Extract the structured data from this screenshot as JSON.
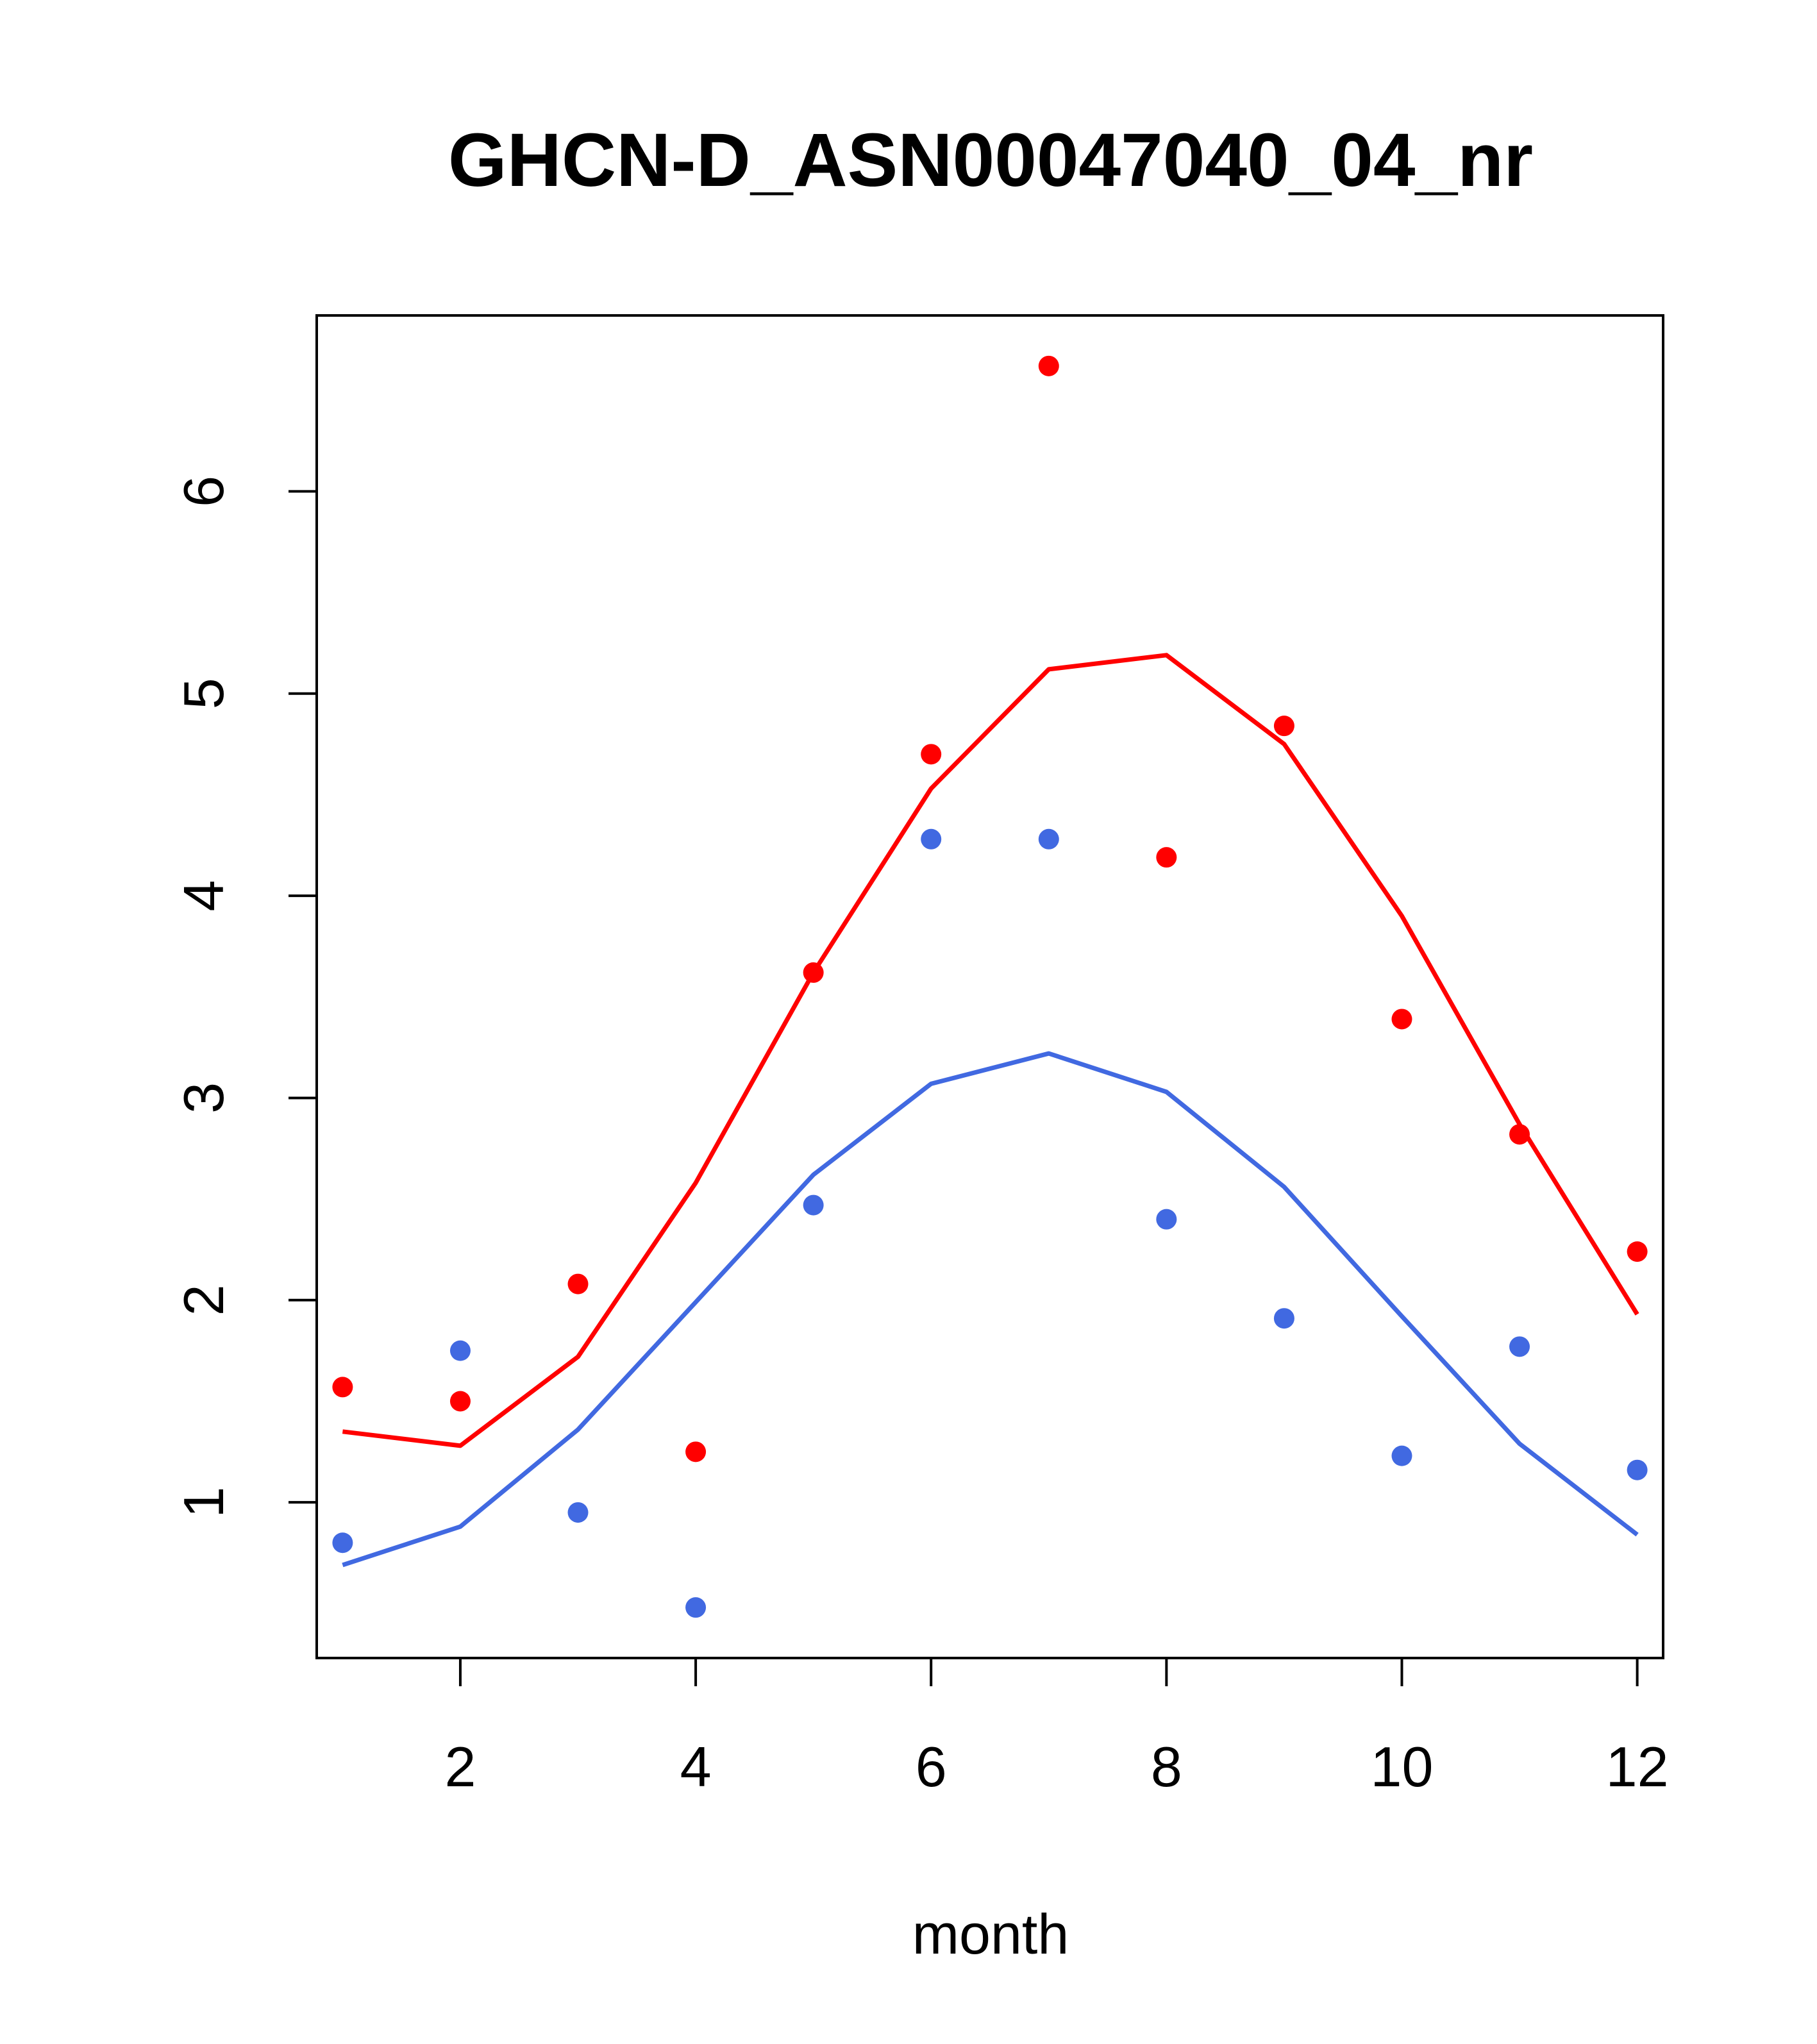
{
  "chart_data": {
    "type": "scatter",
    "title": "GHCN-D_ASN00047040_04_nr",
    "xlabel": "month",
    "ylabel": "",
    "xlim": [
      0.78,
      12.22
    ],
    "ylim": [
      0.23,
      6.87
    ],
    "x_ticks": [
      2,
      4,
      6,
      8,
      10,
      12
    ],
    "y_ticks": [
      1,
      2,
      3,
      4,
      5,
      6
    ],
    "grid": false,
    "legend": "none",
    "x": [
      1,
      2,
      3,
      4,
      5,
      6,
      7,
      8,
      9,
      10,
      11,
      12
    ],
    "series": [
      {
        "color": "#ff0000",
        "points": [
          1.57,
          1.5,
          2.08,
          1.25,
          3.62,
          4.7,
          6.62,
          4.19,
          4.84,
          3.39,
          2.82,
          2.24
        ],
        "line": [
          1.35,
          1.28,
          1.72,
          2.58,
          3.62,
          4.53,
          5.12,
          5.19,
          4.75,
          3.9,
          2.87,
          1.93
        ]
      },
      {
        "color": "#4169e1",
        "points": [
          0.8,
          1.75,
          0.95,
          0.48,
          2.47,
          4.28,
          4.28,
          2.4,
          1.91,
          1.23,
          1.77,
          1.16
        ],
        "line": [
          0.69,
          0.88,
          1.36,
          1.99,
          2.62,
          3.07,
          3.22,
          3.03,
          2.56,
          1.92,
          1.29,
          0.84
        ]
      }
    ]
  }
}
